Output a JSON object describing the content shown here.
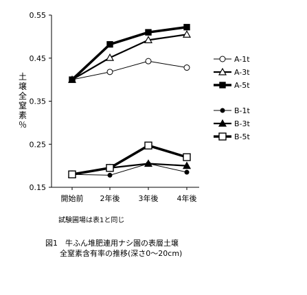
{
  "chart_data": {
    "type": "line",
    "ylabel": "土壌全窒素％",
    "xlabel": "",
    "categories": [
      "開始前",
      "2年後",
      "3年後",
      "4年後"
    ],
    "yticks": [
      "0.55",
      "0.45",
      "0.35",
      "0.25",
      "0.15"
    ],
    "ylim": [
      0.15,
      0.55
    ],
    "grid": false,
    "legend_position": "right",
    "series": [
      {
        "name": "A-1t",
        "values": [
          0.4,
          0.418,
          0.443,
          0.428
        ],
        "marker": "circle-open",
        "line": "thin"
      },
      {
        "name": "A-3t",
        "values": [
          0.4,
          0.451,
          0.492,
          0.505
        ],
        "marker": "triangle-open",
        "line": "medium"
      },
      {
        "name": "A-5t",
        "values": [
          0.4,
          0.482,
          0.51,
          0.522
        ],
        "marker": "square-filled",
        "line": "thick"
      },
      {
        "name": "B-1t",
        "values": [
          0.18,
          0.178,
          0.205,
          0.185
        ],
        "marker": "circle-filled",
        "line": "thin"
      },
      {
        "name": "B-3t",
        "values": [
          0.18,
          0.195,
          0.205,
          0.2
        ],
        "marker": "triangle-filled",
        "line": "medium"
      },
      {
        "name": "B-5t",
        "values": [
          0.18,
          0.195,
          0.247,
          0.22
        ],
        "marker": "square-open",
        "line": "thick"
      }
    ]
  },
  "note": "試験圃場は表1と同じ",
  "caption": {
    "line1": "図1　牛ふん堆肥連用ナシ園の表層土壌",
    "line2": "全窒素含有率の推移(深さ0～20cm)"
  }
}
